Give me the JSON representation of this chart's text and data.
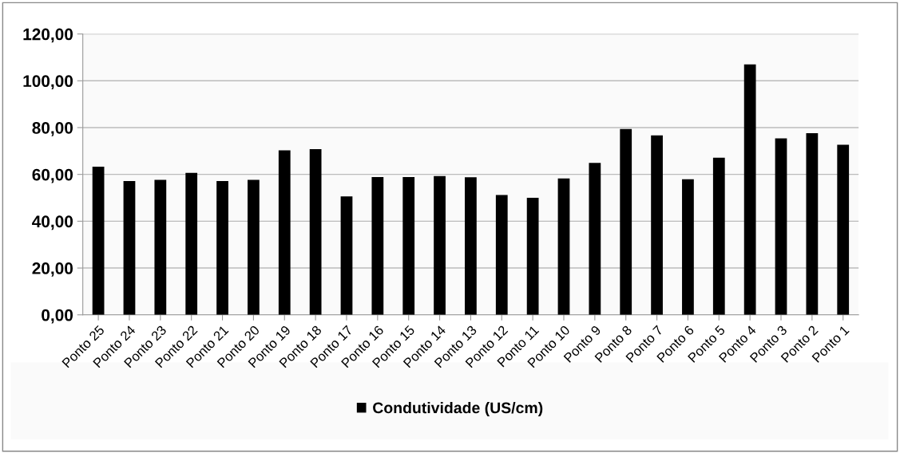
{
  "chart_data": {
    "type": "bar",
    "categories": [
      "Ponto 25",
      "Ponto 24",
      "Ponto 23",
      "Ponto 22",
      "Ponto 21",
      "Ponto 20",
      "Ponto 19",
      "Ponto 18",
      "Ponto 17",
      "Ponto 16",
      "Ponto 15",
      "Ponto 14",
      "Ponto 13",
      "Ponto 12",
      "Ponto 11",
      "Ponto 10",
      "Ponto 9",
      "Ponto 8",
      "Ponto 7",
      "Ponto 6",
      "Ponto 5",
      "Ponto 4",
      "Ponto 3",
      "Ponto 2",
      "Ponto 1"
    ],
    "series": [
      {
        "name": "Condutividade (US/cm)",
        "color": "#000000",
        "values": [
          63.3,
          57.2,
          57.7,
          60.7,
          57.2,
          57.7,
          70.3,
          70.8,
          50.6,
          58.9,
          58.9,
          59.3,
          58.8,
          51.2,
          50.0,
          58.3,
          64.9,
          79.4,
          76.7,
          57.9,
          67.1,
          107.0,
          75.4,
          77.6,
          72.7
        ]
      }
    ],
    "ylim": [
      0,
      120
    ],
    "yticks": [
      {
        "value": 0,
        "label": "0,00"
      },
      {
        "value": 20,
        "label": "20,00"
      },
      {
        "value": 40,
        "label": "40,00"
      },
      {
        "value": 60,
        "label": "60,00"
      },
      {
        "value": 80,
        "label": "80,00"
      },
      {
        "value": 100,
        "label": "100,00"
      },
      {
        "value": 120,
        "label": "120,00"
      }
    ],
    "grid": "y",
    "legend": "bottom"
  }
}
